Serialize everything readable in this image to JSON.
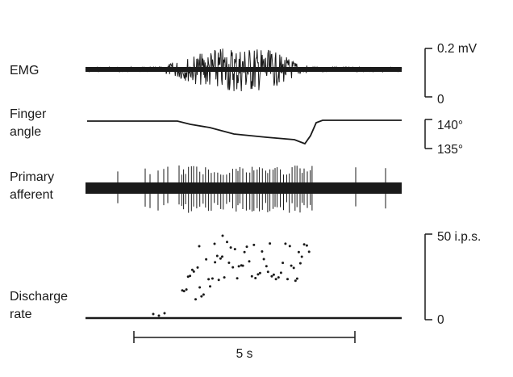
{
  "traces": [
    {
      "id": "emg",
      "label_lines": [
        "EMG"
      ]
    },
    {
      "id": "finger-angle",
      "label_lines": [
        "Finger",
        "angle"
      ]
    },
    {
      "id": "primary-afferent",
      "label_lines": [
        "Primary",
        "afferent"
      ]
    },
    {
      "id": "discharge-rate",
      "label_lines": [
        "Discharge",
        "rate"
      ]
    }
  ],
  "scales": {
    "emg": {
      "top": "0.2 mV",
      "bottom": "0"
    },
    "finger_angle": {
      "top": "140°",
      "bottom": "135°"
    },
    "discharge_rate": {
      "top": "50 i.p.s.",
      "bottom": "0"
    }
  },
  "time_bar": {
    "label": "5 s",
    "duration_s": 5
  },
  "colors": {
    "ink": "#1a1a1a",
    "background": "#ffffff"
  }
}
